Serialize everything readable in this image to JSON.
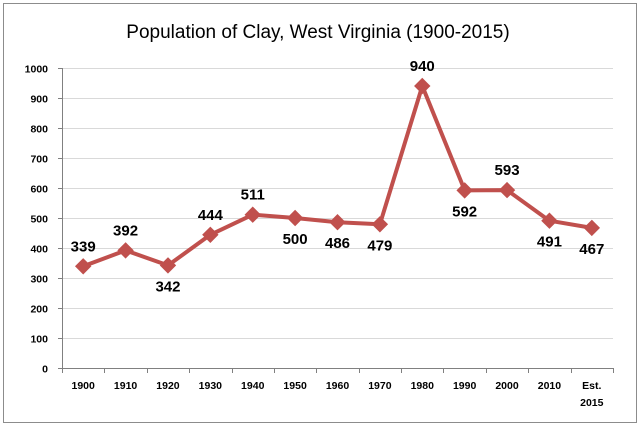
{
  "chart_data": {
    "type": "line",
    "title": "Population of Clay, West Virginia (1900-2015)",
    "xlabel": "",
    "ylabel": "",
    "ylim": [
      0,
      1000
    ],
    "yticks": [
      0,
      100,
      200,
      300,
      400,
      500,
      600,
      700,
      800,
      900,
      1000
    ],
    "grid": true,
    "legend": "none",
    "series_color": "#c0504d",
    "grid_color": "#d9d9d9",
    "categories": [
      [
        "1900"
      ],
      [
        "1910"
      ],
      [
        "1920"
      ],
      [
        "1930"
      ],
      [
        "1940"
      ],
      [
        "1950"
      ],
      [
        "1960"
      ],
      [
        "1970"
      ],
      [
        "1980"
      ],
      [
        "1990"
      ],
      [
        "2000"
      ],
      [
        "2010"
      ],
      [
        "Est.",
        "2015"
      ]
    ],
    "series": [
      {
        "name": "Population",
        "values": [
          339,
          392,
          342,
          444,
          511,
          500,
          486,
          479,
          940,
          592,
          593,
          491,
          467
        ],
        "label_positions": [
          "above",
          "above",
          "below",
          "above",
          "above",
          "below",
          "below",
          "below",
          "above",
          "below",
          "above",
          "below",
          "below"
        ]
      }
    ]
  }
}
